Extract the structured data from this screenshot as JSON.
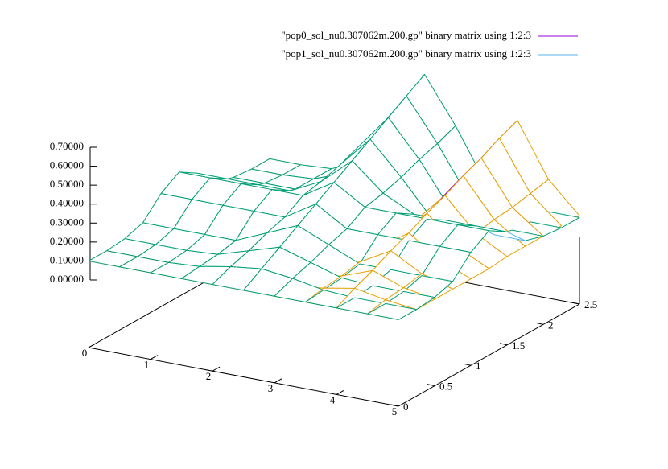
{
  "chart_data": {
    "type": "surface",
    "x": [
      0,
      0.5,
      1,
      1.5,
      2,
      2.5,
      3,
      3.5,
      4,
      4.5,
      5
    ],
    "y": [
      0,
      0.25,
      0.5,
      0.75,
      1,
      1.25,
      1.5,
      1.75,
      2,
      2.25,
      2.5
    ],
    "xlim": [
      0,
      5
    ],
    "ylim": [
      0,
      2.5
    ],
    "zlim": [
      0,
      0.7
    ],
    "xticks": [
      0,
      1,
      2,
      3,
      4,
      5
    ],
    "yticks": [
      0,
      0.5,
      1,
      1.5,
      2,
      2.5
    ],
    "zticks": [
      {
        "value": 0,
        "label": "0.00000"
      },
      {
        "value": 0.1,
        "label": "0.10000"
      },
      {
        "value": 0.2,
        "label": "0.20000"
      },
      {
        "value": 0.3,
        "label": "0.30000"
      },
      {
        "value": 0.4,
        "label": "0.40000"
      },
      {
        "value": 0.5,
        "label": "0.50000"
      },
      {
        "value": 0.6,
        "label": "0.60000"
      },
      {
        "value": 0.7,
        "label": "0.70000"
      }
    ],
    "legend": "top right",
    "series": [
      {
        "name": "\"pop0_sol_nu0.307062m.200.gp\"  binary matrix using 1:2:3",
        "color": "#9400d3",
        "top_color": "#e69f00",
        "z": [
          [
            0.1,
            0.1,
            0.1,
            0.1,
            0.1,
            0.1,
            0.1,
            0.1,
            0.1,
            0.1,
            0.1
          ],
          [
            0.1,
            0.1,
            0.1,
            0.1,
            0.1,
            0.1,
            0.1,
            0.12,
            0.15,
            0.12,
            0.1
          ],
          [
            0.1,
            0.1,
            0.1,
            0.1,
            0.1,
            0.1,
            0.1,
            0.13,
            0.19,
            0.13,
            0.1
          ],
          [
            0.1,
            0.1,
            0.1,
            0.1,
            0.1,
            0.1,
            0.1,
            0.15,
            0.24,
            0.15,
            0.1
          ],
          [
            0.1,
            0.1,
            0.1,
            0.1,
            0.1,
            0.1,
            0.1,
            0.17,
            0.28,
            0.17,
            0.1
          ],
          [
            0.1,
            0.1,
            0.1,
            0.1,
            0.1,
            0.1,
            0.1,
            0.18,
            0.33,
            0.18,
            0.1
          ],
          [
            0.1,
            0.1,
            0.1,
            0.1,
            0.1,
            0.1,
            0.11,
            0.2,
            0.37,
            0.2,
            0.11
          ],
          [
            0.1,
            0.1,
            0.1,
            0.1,
            0.1,
            0.1,
            0.11,
            0.22,
            0.42,
            0.22,
            0.11
          ],
          [
            0.1,
            0.1,
            0.1,
            0.1,
            0.1,
            0.1,
            0.11,
            0.23,
            0.46,
            0.23,
            0.11
          ],
          [
            0.1,
            0.1,
            0.1,
            0.1,
            0.1,
            0.1,
            0.11,
            0.25,
            0.51,
            0.25,
            0.11
          ],
          [
            0.1,
            0.1,
            0.1,
            0.1,
            0.1,
            0.1,
            0.11,
            0.27,
            0.55,
            0.27,
            0.11
          ]
        ]
      },
      {
        "name": "\"pop1_sol_nu0.307062m.200.gp\"  binary matrix using 1:2:3",
        "color": "#56b4e9",
        "top_color": "#009e73",
        "z": [
          [
            0.1,
            0.1,
            0.1,
            0.1,
            0.1,
            0.1,
            0.1,
            0.1,
            0.1,
            0.1,
            0.1
          ],
          [
            0.1,
            0.1,
            0.1,
            0.11,
            0.14,
            0.16,
            0.14,
            0.11,
            0.1,
            0.1,
            0.1
          ],
          [
            0.11,
            0.11,
            0.11,
            0.12,
            0.17,
            0.22,
            0.17,
            0.12,
            0.11,
            0.11,
            0.11
          ],
          [
            0.14,
            0.14,
            0.14,
            0.14,
            0.21,
            0.28,
            0.21,
            0.14,
            0.14,
            0.14,
            0.14
          ],
          [
            0.24,
            0.24,
            0.24,
            0.24,
            0.24,
            0.34,
            0.24,
            0.24,
            0.24,
            0.24,
            0.24
          ],
          [
            0.3,
            0.3,
            0.3,
            0.3,
            0.3,
            0.4,
            0.3,
            0.3,
            0.3,
            0.3,
            0.3
          ],
          [
            0.24,
            0.24,
            0.24,
            0.24,
            0.32,
            0.46,
            0.32,
            0.24,
            0.24,
            0.24,
            0.24
          ],
          [
            0.14,
            0.14,
            0.14,
            0.16,
            0.35,
            0.52,
            0.35,
            0.16,
            0.14,
            0.14,
            0.14
          ],
          [
            0.11,
            0.11,
            0.11,
            0.16,
            0.39,
            0.58,
            0.39,
            0.16,
            0.11,
            0.11,
            0.11
          ],
          [
            0.1,
            0.1,
            0.11,
            0.17,
            0.42,
            0.64,
            0.42,
            0.17,
            0.11,
            0.1,
            0.1
          ],
          [
            0.1,
            0.1,
            0.11,
            0.18,
            0.46,
            0.7,
            0.46,
            0.18,
            0.11,
            0.1,
            0.1
          ]
        ]
      }
    ]
  }
}
